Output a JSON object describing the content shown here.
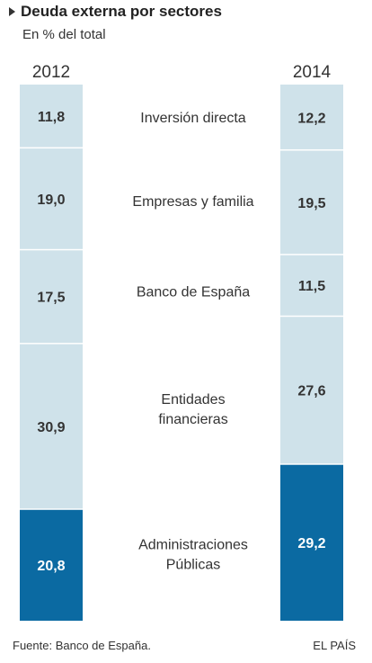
{
  "chart_data": {
    "type": "bar",
    "title": "Deuda externa por sectores",
    "subtitle": "En % del total",
    "stacked": true,
    "orientation": "vertical-100%",
    "columns": [
      "2012",
      "2014"
    ],
    "categories": [
      "Inversión directa",
      "Empresas y familia",
      "Banco de España",
      "Entidades financieras",
      "Administraciones Públicas"
    ],
    "category_lines": [
      [
        "Inversión directa"
      ],
      [
        "Empresas y familia"
      ],
      [
        "Banco de España"
      ],
      [
        "Entidades",
        "financieras"
      ],
      [
        "Administraciones",
        "Públicas"
      ]
    ],
    "series": [
      {
        "name": "2012",
        "values": [
          11.8,
          19.0,
          17.5,
          30.9,
          20.8
        ],
        "labels": [
          "11,8",
          "19,0",
          "17,5",
          "30,9",
          "20,8"
        ]
      },
      {
        "name": "2014",
        "values": [
          12.2,
          19.5,
          11.5,
          27.6,
          29.2
        ],
        "labels": [
          "12,2",
          "19,5",
          "11,5",
          "27,6",
          "29,2"
        ]
      }
    ],
    "unit": "%",
    "colors": {
      "light": "#cfe2ea",
      "highlight": "#0b6aa2",
      "label_dark": "#333333",
      "label_light": "#ffffff"
    },
    "highlighted_category": "Administraciones Públicas"
  },
  "footer": {
    "source": "Fuente: Banco de España.",
    "brand": "EL PAÍS"
  }
}
